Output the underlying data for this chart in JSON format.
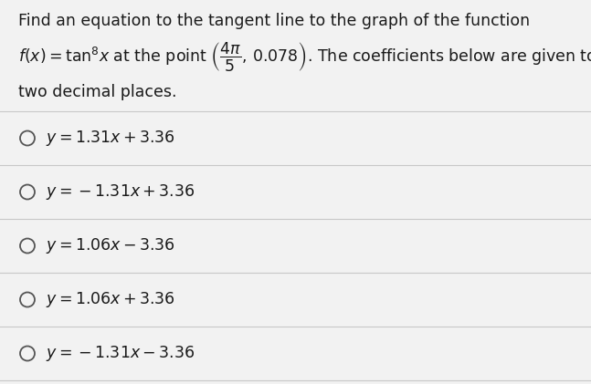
{
  "title_line1": "Find an equation to the tangent line to the graph of the function",
  "line3": "two decimal places.",
  "opt_texts": [
    "y = 1.31x + 3.36",
    "y = -1.31x + 3.36",
    "y = 1.06x - 3.36",
    "y = 1.06x + 3.36",
    "y = -1.31x - 3.36"
  ],
  "bg_color": "#f2f2f2",
  "text_color": "#1a1a1a",
  "divider_color": "#c8c8c8",
  "circle_color": "#555555",
  "font_size": 12.5,
  "fig_width": 6.47,
  "fig_height": 4.21,
  "dpi": 100
}
